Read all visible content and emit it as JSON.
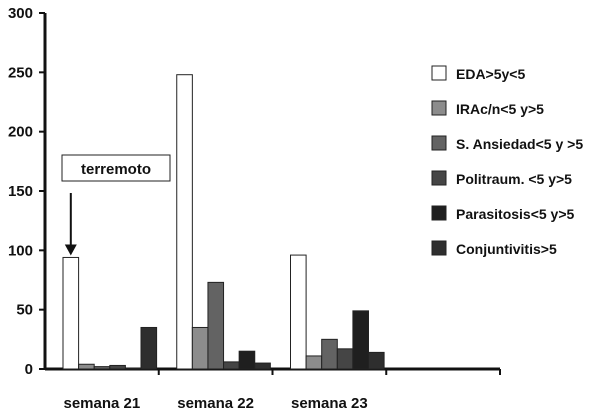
{
  "chart_data": {
    "type": "bar",
    "title": "",
    "xlabel": "",
    "ylabel": "",
    "ylim": [
      0,
      300
    ],
    "yticks": [
      0,
      50,
      100,
      150,
      200,
      250,
      300
    ],
    "grid": false,
    "legend_position": "right",
    "categories": [
      "semana 21",
      "semana 22",
      "semana 23"
    ],
    "series": [
      {
        "name": "EDA>5y<5",
        "color": "#ffffff",
        "values": [
          94,
          248,
          96
        ]
      },
      {
        "name": "IRAc/n<5 y>5",
        "color": "#8c8c8c",
        "values": [
          4,
          35,
          11
        ]
      },
      {
        "name": "S. Ansiedad<5 y >5",
        "color": "#636363",
        "values": [
          2,
          73,
          25
        ]
      },
      {
        "name": "Politraum. <5 y>5",
        "color": "#454545",
        "values": [
          3,
          6,
          17
        ]
      },
      {
        "name": "Parasitosis<5 y>5",
        "color": "#1f1f1f",
        "values": [
          0,
          15,
          49
        ]
      },
      {
        "name": "Conjuntivitis>5",
        "color": "#2e2e2e",
        "values": [
          35,
          5,
          14
        ]
      }
    ],
    "annotations": [
      {
        "text": "terremoto",
        "category": "semana 21",
        "series": "EDA>5y<5"
      }
    ]
  }
}
